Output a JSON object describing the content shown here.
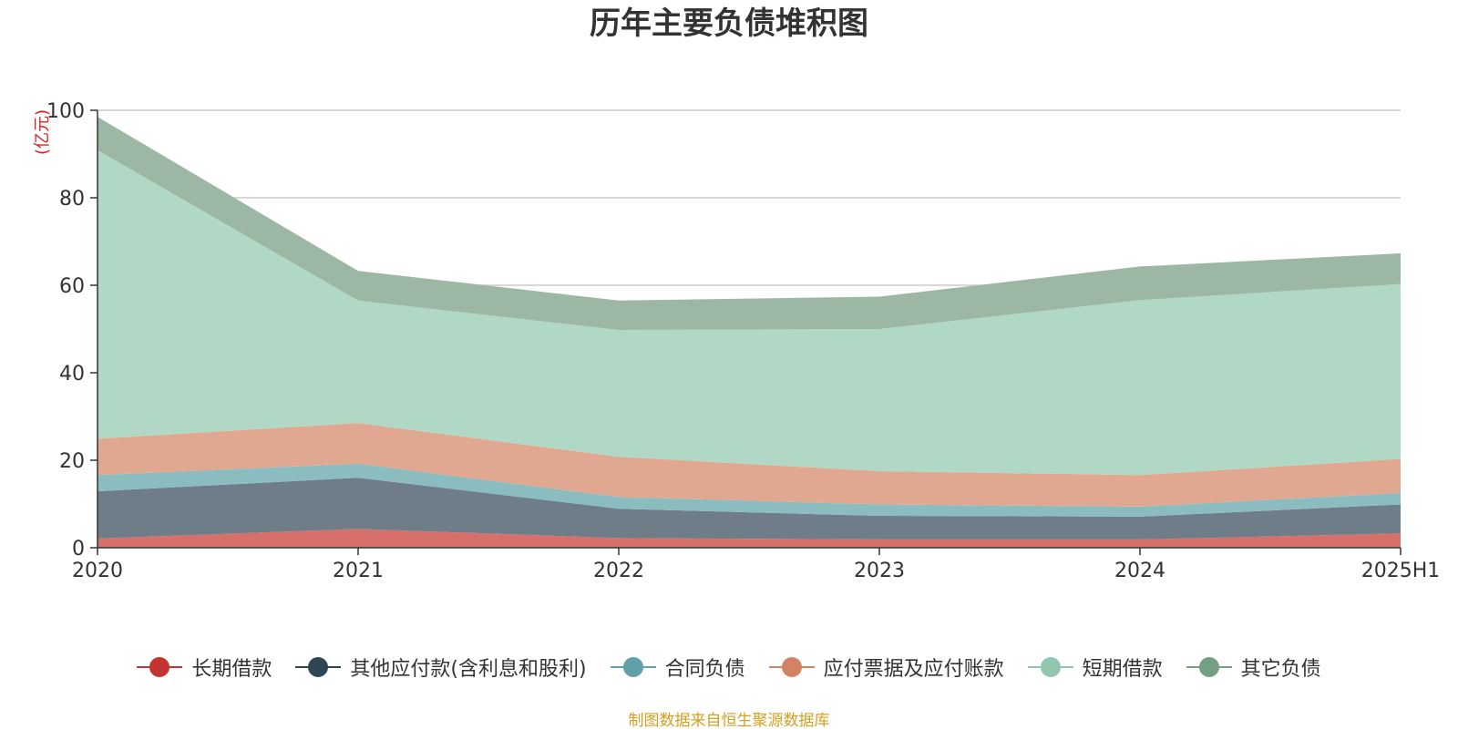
{
  "chart_data": {
    "type": "area",
    "title": "历年主要负债堆积图",
    "unit_label": "(亿元)",
    "categories": [
      "2020",
      "2021",
      "2022",
      "2023",
      "2024",
      "2025H1"
    ],
    "ylim": [
      0,
      100
    ],
    "yticks": [
      0,
      20,
      40,
      60,
      80,
      100
    ],
    "stacked": true,
    "grid": true,
    "legend_position": "bottom",
    "series": [
      {
        "name": "长期借款",
        "color": "#d76f6a",
        "legend_color": "#c23531",
        "values": [
          2.1,
          4.3,
          2.2,
          1.9,
          1.9,
          3.3
        ]
      },
      {
        "name": "其他应付款(含利息和股利)",
        "color": "#6e7d88",
        "legend_color": "#2f4554",
        "values": [
          10.8,
          11.7,
          6.7,
          5.4,
          5.2,
          6.6
        ]
      },
      {
        "name": "合同负债",
        "color": "#8bbcc0",
        "legend_color": "#61a0a8",
        "values": [
          3.7,
          3.2,
          2.7,
          2.6,
          2.3,
          2.6
        ]
      },
      {
        "name": "应付票据及应付账款",
        "color": "#e0a890",
        "legend_color": "#d48265",
        "values": [
          8.3,
          9.3,
          9.2,
          7.6,
          7.2,
          7.8
        ]
      },
      {
        "name": "短期借款",
        "color": "#b1d7c5",
        "legend_color": "#91c7ae",
        "values": [
          66.0,
          28.0,
          29.0,
          32.5,
          40.0,
          40.0
        ]
      },
      {
        "name": "其它负债",
        "color": "#9cb7a3",
        "legend_color": "#749f83",
        "values": [
          7.6,
          6.8,
          6.7,
          7.4,
          7.7,
          7.0
        ]
      }
    ]
  },
  "source_note": "制图数据来自恒生聚源数据库"
}
